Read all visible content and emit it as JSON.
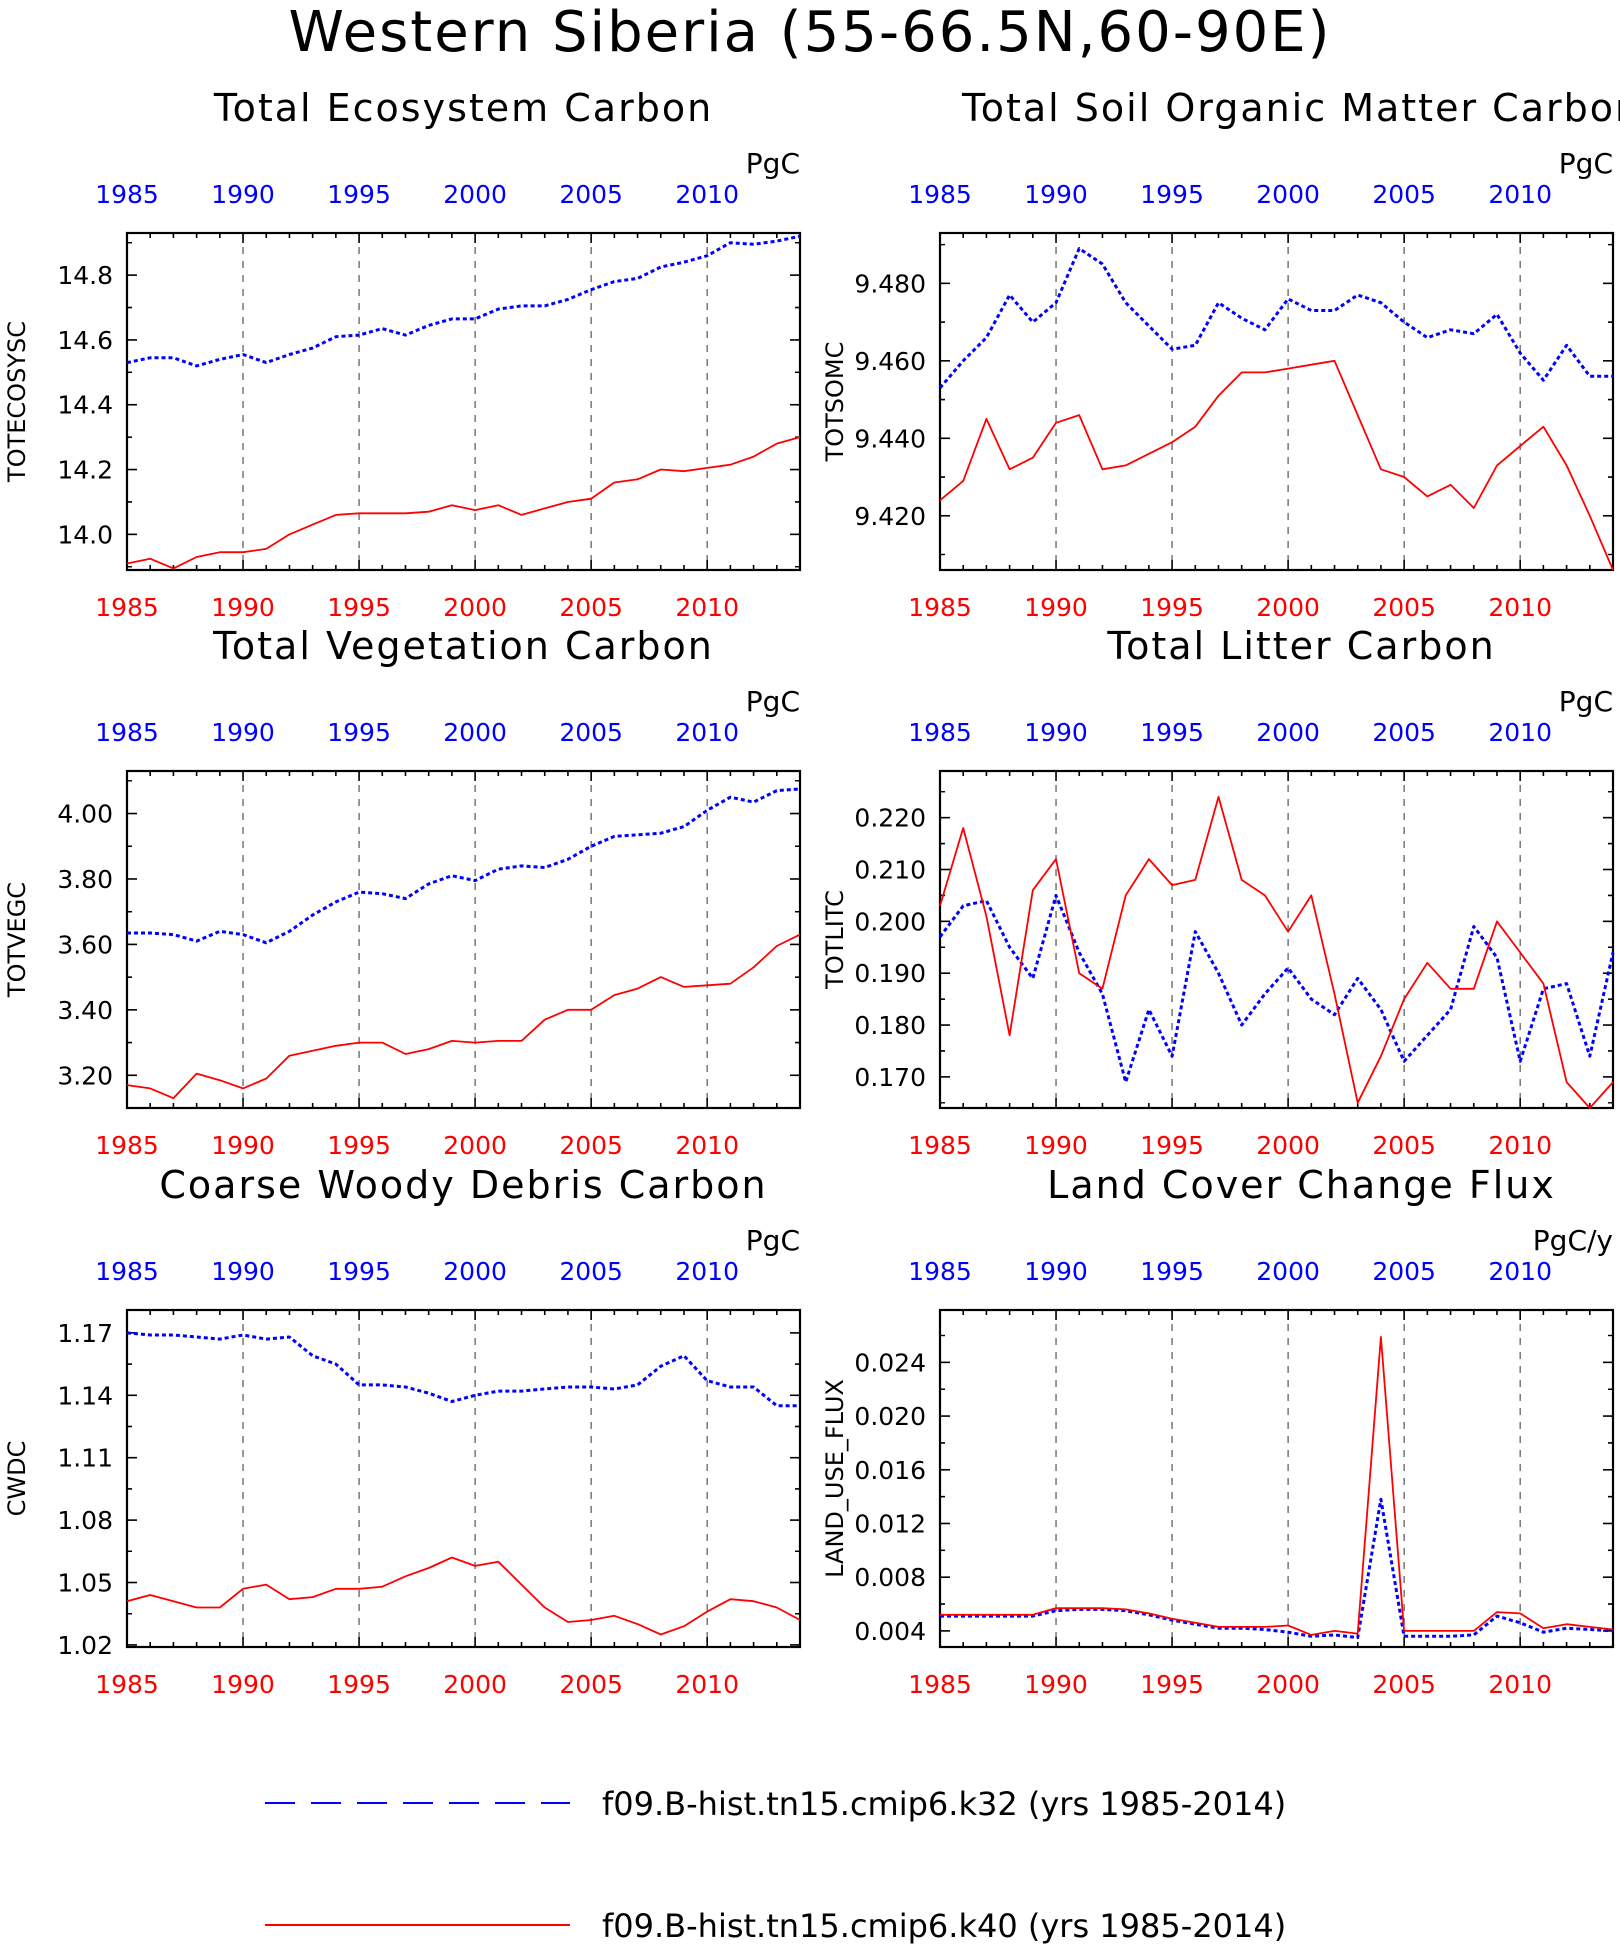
{
  "title": "Western Siberia (55-66.5N,60-90E)",
  "colors": {
    "k32": "#0000ff",
    "k40": "#ff0000",
    "grid": "#555555"
  },
  "years": [
    1985,
    1986,
    1987,
    1988,
    1989,
    1990,
    1991,
    1992,
    1993,
    1994,
    1995,
    1996,
    1997,
    1998,
    1999,
    2000,
    2001,
    2002,
    2003,
    2004,
    2005,
    2006,
    2007,
    2008,
    2009,
    2010,
    2011,
    2012,
    2013,
    2014
  ],
  "xticks": [
    "1985",
    "1990",
    "1995",
    "2000",
    "2005",
    "2010"
  ],
  "legend": [
    {
      "label": "f09.B-hist.tn15.cmip6.k32 (yrs 1985-2014)",
      "style": "dashed",
      "color": "#0000ff"
    },
    {
      "label": "f09.B-hist.tn15.cmip6.k40 (yrs 1985-2014)",
      "style": "solid",
      "color": "#ff0000"
    }
  ],
  "chart_data": [
    {
      "type": "line",
      "title": "Total Ecosystem Carbon",
      "ylabel": "TOTECOSYSC",
      "units": "PgC",
      "ylim": [
        13.89,
        14.93
      ],
      "yticks": [
        "14.0",
        "14.2",
        "14.4",
        "14.6",
        "14.8"
      ],
      "series": [
        {
          "name": "f09.B-hist.tn15.cmip6.k32 (yrs 1985-2014)",
          "values": [
            14.53,
            14.545,
            14.545,
            14.52,
            14.54,
            14.555,
            14.53,
            14.555,
            14.575,
            14.61,
            14.615,
            14.635,
            14.615,
            14.645,
            14.665,
            14.665,
            14.695,
            14.705,
            14.705,
            14.725,
            14.755,
            14.78,
            14.79,
            14.825,
            14.84,
            14.86,
            14.9,
            14.895,
            14.905,
            14.92
          ]
        },
        {
          "name": "f09.B-hist.tn15.cmip6.k40 (yrs 1985-2014)",
          "values": [
            13.91,
            13.925,
            13.895,
            13.93,
            13.945,
            13.945,
            13.955,
            14.0,
            14.03,
            14.06,
            14.065,
            14.065,
            14.065,
            14.07,
            14.09,
            14.075,
            14.09,
            14.06,
            14.08,
            14.1,
            14.11,
            14.16,
            14.17,
            14.2,
            14.195,
            14.205,
            14.215,
            14.24,
            14.28,
            14.3
          ]
        }
      ]
    },
    {
      "type": "line",
      "title": "Total Soil Organic Matter Carbon",
      "ylabel": "TOTSOMC",
      "units": "PgC",
      "ylim": [
        9.406,
        9.493
      ],
      "yticks": [
        "9.420",
        "9.440",
        "9.460",
        "9.480"
      ],
      "series": [
        {
          "name": "f09.B-hist.tn15.cmip6.k32 (yrs 1985-2014)",
          "values": [
            9.453,
            9.46,
            9.466,
            9.477,
            9.47,
            9.475,
            9.489,
            9.485,
            9.475,
            9.469,
            9.463,
            9.464,
            9.475,
            9.471,
            9.468,
            9.476,
            9.473,
            9.473,
            9.477,
            9.475,
            9.47,
            9.466,
            9.468,
            9.467,
            9.472,
            9.462,
            9.455,
            9.464,
            9.456,
            9.456
          ]
        },
        {
          "name": "f09.B-hist.tn15.cmip6.k40 (yrs 1985-2014)",
          "values": [
            9.424,
            9.429,
            9.445,
            9.432,
            9.435,
            9.444,
            9.446,
            9.432,
            9.433,
            9.436,
            9.439,
            9.443,
            9.451,
            9.457,
            9.457,
            9.458,
            9.459,
            9.46,
            9.446,
            9.432,
            9.43,
            9.425,
            9.428,
            9.422,
            9.433,
            9.438,
            9.443,
            9.433,
            9.42,
            9.406
          ]
        }
      ]
    },
    {
      "type": "line",
      "title": "Total Vegetation Carbon",
      "ylabel": "TOTVEGC",
      "units": "PgC",
      "ylim": [
        3.1,
        4.13
      ],
      "yticks": [
        "3.20",
        "3.40",
        "3.60",
        "3.80",
        "4.00"
      ],
      "series": [
        {
          "name": "f09.B-hist.tn15.cmip6.k32 (yrs 1985-2014)",
          "values": [
            3.635,
            3.635,
            3.63,
            3.61,
            3.64,
            3.63,
            3.605,
            3.64,
            3.69,
            3.73,
            3.76,
            3.755,
            3.74,
            3.785,
            3.81,
            3.795,
            3.83,
            3.84,
            3.835,
            3.86,
            3.9,
            3.93,
            3.935,
            3.94,
            3.96,
            4.01,
            4.05,
            4.035,
            4.07,
            4.075
          ]
        },
        {
          "name": "f09.B-hist.tn15.cmip6.k40 (yrs 1985-2014)",
          "values": [
            3.17,
            3.16,
            3.13,
            3.205,
            3.185,
            3.16,
            3.19,
            3.26,
            3.275,
            3.29,
            3.3,
            3.3,
            3.265,
            3.28,
            3.305,
            3.3,
            3.305,
            3.305,
            3.37,
            3.4,
            3.4,
            3.445,
            3.465,
            3.5,
            3.47,
            3.475,
            3.48,
            3.53,
            3.595,
            3.63
          ]
        }
      ]
    },
    {
      "type": "line",
      "title": "Total Litter Carbon",
      "ylabel": "TOTLITC",
      "units": "PgC",
      "ylim": [
        0.164,
        0.229
      ],
      "yticks": [
        "0.170",
        "0.180",
        "0.190",
        "0.200",
        "0.210",
        "0.220"
      ],
      "series": [
        {
          "name": "f09.B-hist.tn15.cmip6.k32 (yrs 1985-2014)",
          "values": [
            0.197,
            0.203,
            0.204,
            0.195,
            0.189,
            0.205,
            0.194,
            0.186,
            0.169,
            0.183,
            0.174,
            0.198,
            0.19,
            0.18,
            0.186,
            0.191,
            0.185,
            0.182,
            0.189,
            0.183,
            0.173,
            0.178,
            0.183,
            0.199,
            0.193,
            0.173,
            0.187,
            0.188,
            0.174,
            0.194
          ]
        },
        {
          "name": "f09.B-hist.tn15.cmip6.k40 (yrs 1985-2014)",
          "values": [
            0.203,
            0.218,
            0.201,
            0.178,
            0.206,
            0.212,
            0.19,
            0.187,
            0.205,
            0.212,
            0.207,
            0.208,
            0.224,
            0.208,
            0.205,
            0.198,
            0.205,
            0.186,
            0.165,
            0.174,
            0.185,
            0.192,
            0.187,
            0.187,
            0.2,
            0.194,
            0.188,
            0.169,
            0.164,
            0.169
          ]
        }
      ]
    },
    {
      "type": "line",
      "title": "Coarse Woody Debris Carbon",
      "ylabel": "CWDC",
      "units": "PgC",
      "ylim": [
        1.019,
        1.181
      ],
      "yticks": [
        "1.02",
        "1.05",
        "1.08",
        "1.11",
        "1.14",
        "1.17"
      ],
      "series": [
        {
          "name": "f09.B-hist.tn15.cmip6.k32 (yrs 1985-2014)",
          "values": [
            1.17,
            1.169,
            1.169,
            1.168,
            1.167,
            1.169,
            1.167,
            1.168,
            1.159,
            1.155,
            1.145,
            1.145,
            1.144,
            1.141,
            1.137,
            1.14,
            1.142,
            1.142,
            1.143,
            1.144,
            1.144,
            1.143,
            1.145,
            1.154,
            1.159,
            1.147,
            1.144,
            1.144,
            1.135,
            1.135
          ]
        },
        {
          "name": "f09.B-hist.tn15.cmip6.k40 (yrs 1985-2014)",
          "values": [
            1.041,
            1.044,
            1.041,
            1.038,
            1.038,
            1.047,
            1.049,
            1.042,
            1.043,
            1.047,
            1.047,
            1.048,
            1.053,
            1.057,
            1.062,
            1.058,
            1.06,
            1.049,
            1.038,
            1.031,
            1.032,
            1.034,
            1.03,
            1.025,
            1.029,
            1.036,
            1.042,
            1.041,
            1.038,
            1.032
          ]
        }
      ]
    },
    {
      "type": "line",
      "title": "Land Cover Change Flux",
      "ylabel": "LAND_USE_FLUX",
      "units": "PgC/y",
      "ylim": [
        0.0028,
        0.0279
      ],
      "yticks": [
        "0.004",
        "0.008",
        "0.012",
        "0.016",
        "0.020",
        "0.024"
      ],
      "series": [
        {
          "name": "f09.B-hist.tn15.cmip6.k32 (yrs 1985-2014)",
          "values": [
            0.0051,
            0.0051,
            0.0051,
            0.0051,
            0.0051,
            0.0055,
            0.0056,
            0.0056,
            0.0055,
            0.0052,
            0.0048,
            0.0045,
            0.0042,
            0.0042,
            0.0041,
            0.0039,
            0.0036,
            0.0037,
            0.0035,
            0.0138,
            0.0036,
            0.0036,
            0.0036,
            0.0037,
            0.0051,
            0.0046,
            0.0039,
            0.0042,
            0.0041,
            0.004
          ]
        },
        {
          "name": "f09.B-hist.tn15.cmip6.k40 (yrs 1985-2014)",
          "values": [
            0.0052,
            0.0052,
            0.0052,
            0.0052,
            0.0052,
            0.0057,
            0.0057,
            0.0057,
            0.0056,
            0.0053,
            0.0049,
            0.0046,
            0.0043,
            0.0043,
            0.0043,
            0.0044,
            0.0037,
            0.004,
            0.0038,
            0.0259,
            0.004,
            0.004,
            0.004,
            0.004,
            0.0054,
            0.0053,
            0.0042,
            0.0045,
            0.0043,
            0.0041
          ]
        }
      ]
    }
  ]
}
